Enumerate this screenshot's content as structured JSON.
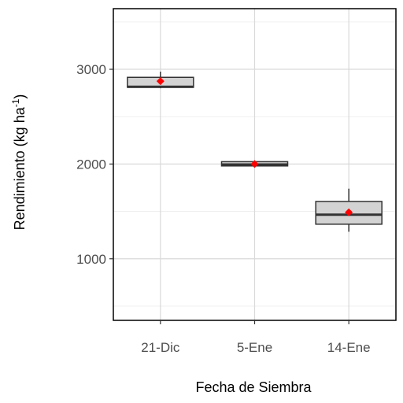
{
  "chart_data": {
    "type": "box",
    "xlabel": "Fecha de Siembra",
    "ylabel": "Rendimiento (kg ha",
    "ylabel_sup": "-1",
    "ylabel_close": ")",
    "ylim": [
      350,
      3640
    ],
    "y_ticks": [
      1000,
      2000,
      3000
    ],
    "y_tick_labels": [
      "1000",
      "2000",
      "3000"
    ],
    "y_minor_grid": [
      500,
      1500,
      2500,
      3500
    ],
    "grid": true,
    "categories": [
      "21-Dic",
      "5-Ene",
      "14-Ene"
    ],
    "boxes": [
      {
        "category": "21-Dic",
        "min": 2800,
        "q1": 2810,
        "median": 2815,
        "q3": 2915,
        "max": 2975,
        "mean": 2875
      },
      {
        "category": "5-Ene",
        "min": 1980,
        "q1": 1980,
        "median": 1995,
        "q3": 2025,
        "max": 2035,
        "mean": 2000
      },
      {
        "category": "14-Ene",
        "min": 1285,
        "q1": 1365,
        "median": 1465,
        "q3": 1605,
        "max": 1740,
        "mean": 1490
      }
    ],
    "colors": {
      "box_fill": "#d3d3d3",
      "box_stroke": "#333333",
      "median": "#333333",
      "mean": "#ff0000",
      "grid_major": "#d9d9d9",
      "grid_minor": "#ececec",
      "panel_border": "#000000"
    }
  }
}
